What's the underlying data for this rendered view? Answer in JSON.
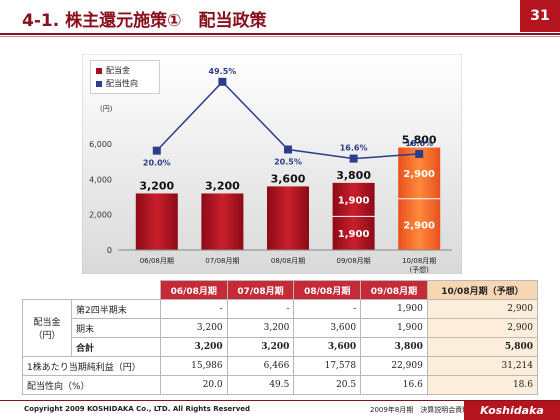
{
  "header": {
    "title": "4-1. 株主還元施策①　配当政策",
    "page_number": "31"
  },
  "legend": {
    "items": [
      {
        "label": "配当金",
        "color": "#a80f1b"
      },
      {
        "label": "配当性向",
        "color": "#2b3d8c"
      }
    ]
  },
  "chart_data": {
    "type": "bar+line",
    "categories": [
      "06/08月期",
      "07/08月期",
      "08/08月期",
      "09/08月期",
      "10/08月期"
    ],
    "category_note": "(予想)",
    "y_unit": "(円)",
    "ylim": [
      0,
      6000
    ],
    "yticks": [
      "0",
      "2,000",
      "4,000",
      "6,000"
    ],
    "series": [
      {
        "name": "配当金",
        "type": "stacked-bar",
        "totals": [
          3200,
          3200,
          3600,
          3800,
          5800
        ],
        "total_labels": [
          "3,200",
          "3,200",
          "3,600",
          "3,800",
          "5,800"
        ],
        "segments": [
          {
            "values": [
              3200,
              3200,
              3600,
              1900,
              2900
            ],
            "labels": [
              "",
              "",
              "",
              "1,900",
              "2,900"
            ]
          },
          {
            "values": [
              0,
              0,
              0,
              1900,
              2900
            ],
            "labels": [
              "",
              "",
              "",
              "1,900",
              "2,900"
            ]
          }
        ]
      },
      {
        "name": "配当性向",
        "type": "line",
        "values": [
          20.0,
          49.5,
          20.5,
          16.6,
          18.6
        ],
        "labels": [
          "20.0%",
          "49.5%",
          "20.5%",
          "16.6%",
          "18.6%"
        ],
        "ylim": [
          0,
          60
        ]
      }
    ]
  },
  "table": {
    "headers": [
      "06/08月期",
      "07/08月期",
      "08/08月期",
      "09/08月期",
      "10/08月期（予想）"
    ],
    "group_label_1": "配当金",
    "group_label_2": "（円）",
    "rows": [
      {
        "label": "第2四半期末",
        "values": [
          "-",
          "-",
          "-",
          "1,900",
          "2,900"
        ]
      },
      {
        "label": "期末",
        "values": [
          "3,200",
          "3,200",
          "3,600",
          "1,900",
          "2,900"
        ]
      },
      {
        "label": "合計",
        "values": [
          "3,200",
          "3,200",
          "3,600",
          "3,800",
          "5,800"
        ]
      }
    ],
    "eps": {
      "label": "1株あたり当期純利益（円）",
      "values": [
        "15,986",
        "6,466",
        "17,578",
        "22,909",
        "31,214"
      ]
    },
    "payout": {
      "label": "配当性向（%）",
      "values": [
        "20.0",
        "49.5",
        "20.5",
        "16.6",
        "18.6"
      ]
    }
  },
  "footer": {
    "copyright": "Copyright 2009 KOSHIDAKA Co., LTD. All Rights Reserved",
    "document": "2009年8月期　決算説明会資料",
    "logo_text": "Koshidaka"
  }
}
